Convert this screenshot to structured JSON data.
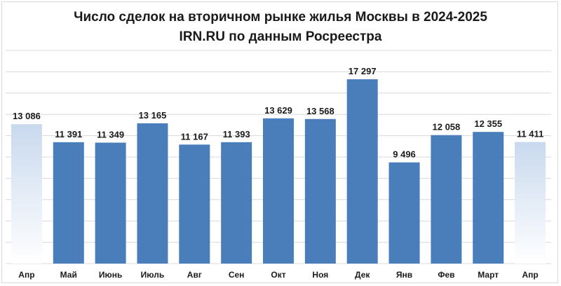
{
  "chart_data": {
    "type": "bar",
    "title": "Число сделок на вторичном рынке жилья Москвы в 2024-2025",
    "subtitle": "IRN.RU по данным Росреестра",
    "xlabel": "",
    "ylabel": "",
    "grid": true,
    "ylim": [
      0,
      20000
    ],
    "categories": [
      "Апр",
      "Май",
      "Июнь",
      "Июль",
      "Авг",
      "Сен",
      "Окт",
      "Ноя",
      "Дек",
      "Янв",
      "Фев",
      "Март",
      "Апр"
    ],
    "values": [
      13086,
      11391,
      11349,
      13165,
      11167,
      11393,
      13629,
      13568,
      17297,
      9496,
      12058,
      12355,
      11411
    ],
    "value_labels": [
      "13 086",
      "11 391",
      "11 349",
      "13 165",
      "11 167",
      "11 393",
      "13 629",
      "13 568",
      "17 297",
      "9 496",
      "12 058",
      "12 355",
      "11 411"
    ],
    "highlighted": [
      true,
      false,
      false,
      false,
      false,
      false,
      false,
      false,
      false,
      false,
      false,
      false,
      true
    ],
    "colors": {
      "bar": "#4a7ebb",
      "highlight_top": "#c9d9ee",
      "highlight_bottom": "#ffffff",
      "grid": "#d9d9d9"
    }
  }
}
